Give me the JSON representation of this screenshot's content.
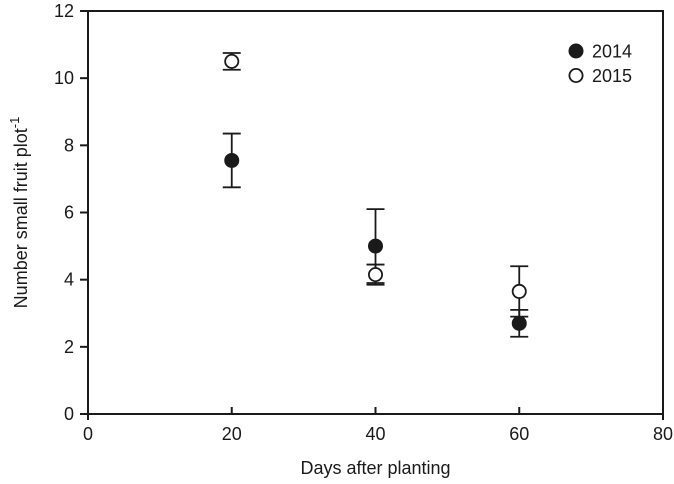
{
  "figure": {
    "background_color": "#ffffff",
    "ink_color": "#1a1a1a"
  },
  "chart_data": {
    "type": "scatter",
    "title": "",
    "xlabel": "Days after planting",
    "ylabel": "Number small fruit plot",
    "ylabel_exponent": "-1",
    "xlim": [
      0,
      80
    ],
    "ylim": [
      0,
      12
    ],
    "xticks": [
      "0",
      "20",
      "40",
      "60",
      "80"
    ],
    "yticks": [
      "0",
      "2",
      "4",
      "6",
      "8",
      "10",
      "12"
    ],
    "grid": false,
    "legend_position": "top-right",
    "x": [
      20,
      40,
      60
    ],
    "series": [
      {
        "name": "2014",
        "marker": "filled-circle",
        "marker_fill": "#1a1a1a",
        "marker_stroke": "#1a1a1a",
        "values": [
          7.55,
          5.0,
          2.7
        ],
        "errors": [
          0.8,
          1.1,
          0.4
        ]
      },
      {
        "name": "2015",
        "marker": "open-circle",
        "marker_fill": "#ffffff",
        "marker_stroke": "#1a1a1a",
        "values": [
          10.5,
          4.15,
          3.65
        ],
        "errors": [
          0.25,
          0.3,
          0.75
        ]
      }
    ]
  }
}
